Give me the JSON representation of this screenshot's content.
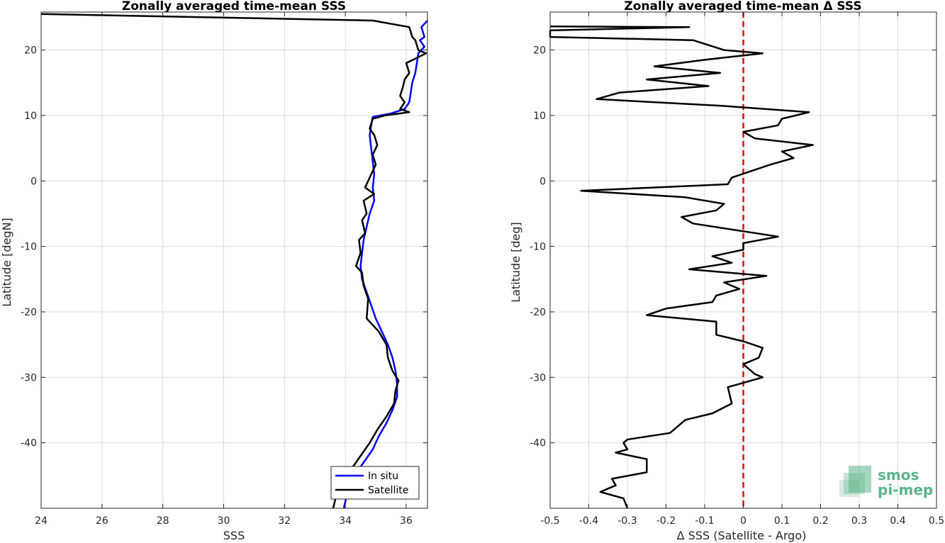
{
  "chart_data": [
    {
      "type": "line",
      "title": "Zonally averaged time-mean SSS",
      "xlabel": "SSS",
      "ylabel": "Latitude [degN]",
      "xlim": [
        24,
        36.7
      ],
      "ylim": [
        -50,
        25.8
      ],
      "xticks": [
        24,
        26,
        28,
        30,
        32,
        34,
        36
      ],
      "yticks": [
        -40,
        -30,
        -20,
        -10,
        0,
        10,
        20
      ],
      "grid": true,
      "legend": {
        "placement": "bottom-right",
        "entries": [
          "In situ",
          "Satellite"
        ]
      },
      "series": [
        {
          "name": "In situ",
          "color": "#0000ff",
          "points": [
            [
              36.7,
              24.5
            ],
            [
              36.5,
              23.5
            ],
            [
              36.6,
              22
            ],
            [
              36.45,
              21.5
            ],
            [
              36.6,
              20.5
            ],
            [
              36.4,
              19.5
            ],
            [
              36.35,
              18
            ],
            [
              36.3,
              16.5
            ],
            [
              36.2,
              15
            ],
            [
              36.15,
              13.5
            ],
            [
              36.1,
              12
            ],
            [
              35.95,
              11
            ],
            [
              35.5,
              10.3
            ],
            [
              34.9,
              9.8
            ],
            [
              34.85,
              8.5
            ],
            [
              34.8,
              7
            ],
            [
              34.85,
              5
            ],
            [
              34.9,
              3
            ],
            [
              34.95,
              1
            ],
            [
              34.9,
              -1
            ],
            [
              34.95,
              -3
            ],
            [
              34.8,
              -5
            ],
            [
              34.7,
              -7
            ],
            [
              34.6,
              -9
            ],
            [
              34.55,
              -11
            ],
            [
              34.5,
              -13
            ],
            [
              34.55,
              -15
            ],
            [
              34.7,
              -17
            ],
            [
              34.85,
              -19
            ],
            [
              35.0,
              -21
            ],
            [
              35.2,
              -23
            ],
            [
              35.4,
              -25
            ],
            [
              35.55,
              -27
            ],
            [
              35.65,
              -29
            ],
            [
              35.7,
              -31
            ],
            [
              35.7,
              -33
            ],
            [
              35.55,
              -35
            ],
            [
              35.35,
              -37
            ],
            [
              35.1,
              -39
            ],
            [
              34.9,
              -41
            ],
            [
              34.6,
              -43
            ],
            [
              34.3,
              -45
            ],
            [
              34.1,
              -47
            ],
            [
              34.0,
              -49
            ],
            [
              33.95,
              -50
            ]
          ]
        },
        {
          "name": "Satellite",
          "color": "#000000",
          "points": [
            [
              24.0,
              25.5
            ],
            [
              34.9,
              24.5
            ],
            [
              36.1,
              23.5
            ],
            [
              36.2,
              22
            ],
            [
              36.3,
              21.5
            ],
            [
              36.4,
              20
            ],
            [
              36.65,
              19.5
            ],
            [
              36.0,
              18
            ],
            [
              36.1,
              16.5
            ],
            [
              35.95,
              15.5
            ],
            [
              35.9,
              14.5
            ],
            [
              35.8,
              13
            ],
            [
              35.95,
              12
            ],
            [
              35.8,
              11
            ],
            [
              36.1,
              10.5
            ],
            [
              35.3,
              10
            ],
            [
              34.9,
              9.5
            ],
            [
              34.8,
              8
            ],
            [
              34.95,
              7
            ],
            [
              35.05,
              5.5
            ],
            [
              34.9,
              4
            ],
            [
              35.0,
              2.5
            ],
            [
              34.85,
              1
            ],
            [
              34.65,
              -1
            ],
            [
              34.95,
              -2
            ],
            [
              34.6,
              -3
            ],
            [
              34.7,
              -5
            ],
            [
              34.55,
              -6
            ],
            [
              34.65,
              -8
            ],
            [
              34.45,
              -9
            ],
            [
              34.5,
              -11
            ],
            [
              34.35,
              -13
            ],
            [
              34.55,
              -14
            ],
            [
              34.6,
              -16
            ],
            [
              34.75,
              -18
            ],
            [
              34.7,
              -21
            ],
            [
              35.1,
              -23
            ],
            [
              35.35,
              -25
            ],
            [
              35.4,
              -27
            ],
            [
              35.55,
              -29
            ],
            [
              35.75,
              -30.5
            ],
            [
              35.65,
              -32
            ],
            [
              35.6,
              -34
            ],
            [
              35.35,
              -36
            ],
            [
              35.05,
              -38
            ],
            [
              34.8,
              -40
            ],
            [
              34.5,
              -42
            ],
            [
              34.2,
              -44
            ],
            [
              33.9,
              -46
            ],
            [
              33.7,
              -48
            ],
            [
              33.6,
              -50
            ]
          ]
        }
      ]
    },
    {
      "type": "line",
      "title": "Zonally averaged time-mean Δ SSS",
      "xlabel": "Δ SSS (Satellite - Argo)",
      "ylabel": "Latitude [deg]",
      "xlim": [
        -0.5,
        0.5
      ],
      "ylim": [
        -50,
        25.8
      ],
      "xticks": [
        -0.5,
        -0.4,
        -0.3,
        -0.2,
        -0.1,
        0,
        0.1,
        0.2,
        0.3,
        0.4,
        0.5
      ],
      "yticks": [
        -40,
        -30,
        -20,
        -10,
        0,
        10,
        20
      ],
      "grid": true,
      "reference_line": {
        "x": 0,
        "color": "#ff0000",
        "style": "dashed"
      },
      "series": [
        {
          "name": "Satellite - Argo",
          "color": "#000000",
          "points": [
            [
              -0.5,
              23.6
            ],
            [
              -0.14,
              23.5
            ],
            [
              -0.5,
              23
            ],
            [
              -0.5,
              22
            ],
            [
              -0.13,
              21.5
            ],
            [
              -0.05,
              20
            ],
            [
              0.05,
              19.5
            ],
            [
              -0.1,
              18.5
            ],
            [
              -0.23,
              17.5
            ],
            [
              -0.06,
              16.5
            ],
            [
              -0.25,
              15.5
            ],
            [
              -0.09,
              14.5
            ],
            [
              -0.32,
              13.5
            ],
            [
              -0.38,
              12.5
            ],
            [
              -0.06,
              11.5
            ],
            [
              0.17,
              10.5
            ],
            [
              0.1,
              9.5
            ],
            [
              0.09,
              8.5
            ],
            [
              0.0,
              7.5
            ],
            [
              0.03,
              6.5
            ],
            [
              0.18,
              5.5
            ],
            [
              0.1,
              4.5
            ],
            [
              0.13,
              3.5
            ],
            [
              0.07,
              2.5
            ],
            [
              -0.03,
              0.5
            ],
            [
              -0.04,
              -0.5
            ],
            [
              -0.42,
              -1.5
            ],
            [
              -0.15,
              -2.5
            ],
            [
              -0.05,
              -3.5
            ],
            [
              -0.07,
              -4.5
            ],
            [
              -0.16,
              -5.5
            ],
            [
              -0.13,
              -6.5
            ],
            [
              0.09,
              -8.5
            ],
            [
              0.0,
              -9.5
            ],
            [
              0.0,
              -10.5
            ],
            [
              -0.08,
              -11.5
            ],
            [
              -0.03,
              -12.5
            ],
            [
              -0.14,
              -13.5
            ],
            [
              0.06,
              -14.5
            ],
            [
              -0.05,
              -15.5
            ],
            [
              -0.01,
              -16.5
            ],
            [
              -0.07,
              -17.5
            ],
            [
              -0.08,
              -18.5
            ],
            [
              -0.2,
              -19.5
            ],
            [
              -0.25,
              -20.5
            ],
            [
              -0.07,
              -21.5
            ],
            [
              -0.07,
              -23.5
            ],
            [
              0.0,
              -24.5
            ],
            [
              0.05,
              -25.5
            ],
            [
              0.04,
              -27
            ],
            [
              0.0,
              -28
            ],
            [
              0.03,
              -29.5
            ],
            [
              0.05,
              -30
            ],
            [
              -0.04,
              -31.5
            ],
            [
              -0.03,
              -34
            ],
            [
              -0.08,
              -35.5
            ],
            [
              -0.15,
              -36.5
            ],
            [
              -0.19,
              -38.5
            ],
            [
              -0.3,
              -39.5
            ],
            [
              -0.31,
              -40
            ],
            [
              -0.3,
              -41
            ],
            [
              -0.33,
              -41.5
            ],
            [
              -0.25,
              -42.5
            ],
            [
              -0.25,
              -44.5
            ],
            [
              -0.34,
              -45.5
            ],
            [
              -0.33,
              -46.5
            ],
            [
              -0.37,
              -47.5
            ],
            [
              -0.34,
              -48
            ],
            [
              -0.31,
              -48.5
            ],
            [
              -0.3,
              -50
            ]
          ]
        }
      ]
    }
  ],
  "logo": {
    "line1": "smos",
    "line2": "pi-mep",
    "color": "#5cb58a"
  }
}
